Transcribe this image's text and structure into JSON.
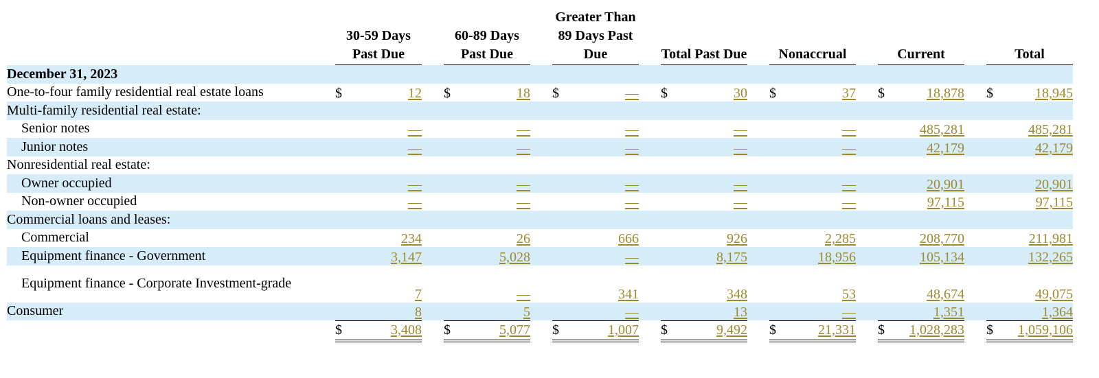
{
  "headers": {
    "c1": "30-59 Days Past Due",
    "c2": "60-89 Days Past Due",
    "c3": "Greater Than 89 Days Past Due",
    "c4": "Total Past Due",
    "c5": "Nonaccrual",
    "c6": "Current",
    "c7": "Total"
  },
  "section_title": "December 31, 2023",
  "currency_symbol": "$",
  "rows": [
    {
      "label": "One-to-four family residential real estate loans",
      "values": [
        "12",
        "18",
        "—",
        "30",
        "37",
        "18,878",
        "18,945"
      ]
    },
    {
      "label": "Multi-family residential real estate:"
    },
    {
      "label": "Senior notes",
      "values": [
        "—",
        "—",
        "—",
        "—",
        "—",
        "485,281",
        "485,281"
      ]
    },
    {
      "label": "Junior notes",
      "values": [
        "—",
        "—",
        "—",
        "—",
        "—",
        "42,179",
        "42,179"
      ]
    },
    {
      "label": "Nonresidential real estate:"
    },
    {
      "label": "Owner occupied",
      "values": [
        "—",
        "—",
        "—",
        "—",
        "—",
        "20,901",
        "20,901"
      ]
    },
    {
      "label": "Non-owner occupied",
      "values": [
        "—",
        "—",
        "—",
        "—",
        "—",
        "97,115",
        "97,115"
      ]
    },
    {
      "label": "Commercial loans and leases:"
    },
    {
      "label": "Commercial",
      "values": [
        "234",
        "26",
        "666",
        "926",
        "2,285",
        "208,770",
        "211,981"
      ]
    },
    {
      "label": "Equipment finance - Government",
      "values": [
        "3,147",
        "5,028",
        "—",
        "8,175",
        "18,956",
        "105,134",
        "132,265"
      ]
    },
    {
      "label": "Equipment finance - Corporate Investment-grade",
      "values": [
        "7",
        "—",
        "341",
        "348",
        "53",
        "48,674",
        "49,075"
      ]
    },
    {
      "label": "Consumer",
      "values": [
        "8",
        "5",
        "—",
        "13",
        "—",
        "1,351",
        "1,364"
      ]
    }
  ],
  "total_row": {
    "values": [
      "3,408",
      "5,077",
      "1,007",
      "9,492",
      "21,331",
      "1,028,283",
      "1,059,106"
    ]
  },
  "colors": {
    "row_shading": "#d6ecf9",
    "value_link": "#9c8a2c"
  }
}
